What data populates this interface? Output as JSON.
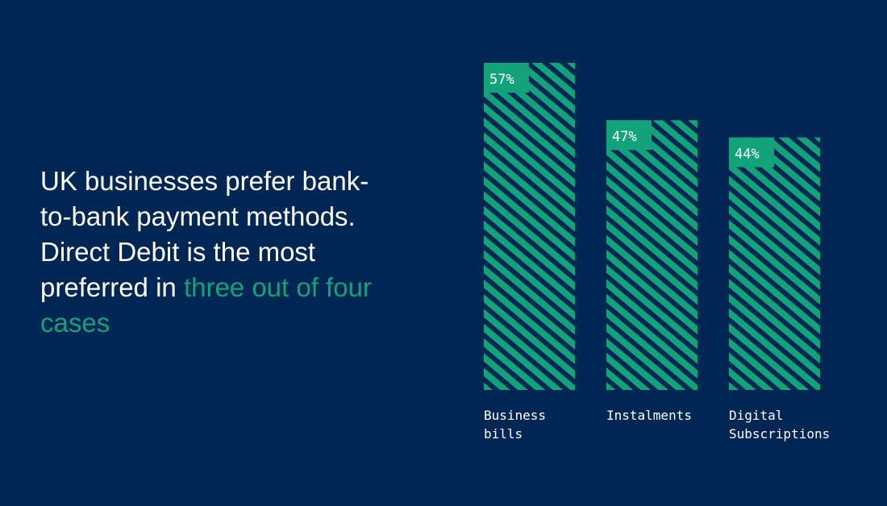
{
  "headline": {
    "text": "UK businesses prefer bank-to-bank payment methods. Direct Debit is the most preferred in",
    "highlight": "three out of four cases"
  },
  "colors": {
    "background": "#002653",
    "bar": "#12a37a",
    "text": "#ffffff",
    "accent": "#12a37a"
  },
  "chart_data": {
    "type": "bar",
    "categories": [
      [
        "Business",
        "bills"
      ],
      [
        "Instalments"
      ],
      [
        "Digital",
        "Subscriptions"
      ]
    ],
    "values": [
      57,
      47,
      44
    ],
    "value_labels": [
      "57%",
      "47%",
      "44%"
    ],
    "ylim": [
      0,
      57
    ],
    "grid": false,
    "bar_fill": "diagonal-stripes"
  }
}
